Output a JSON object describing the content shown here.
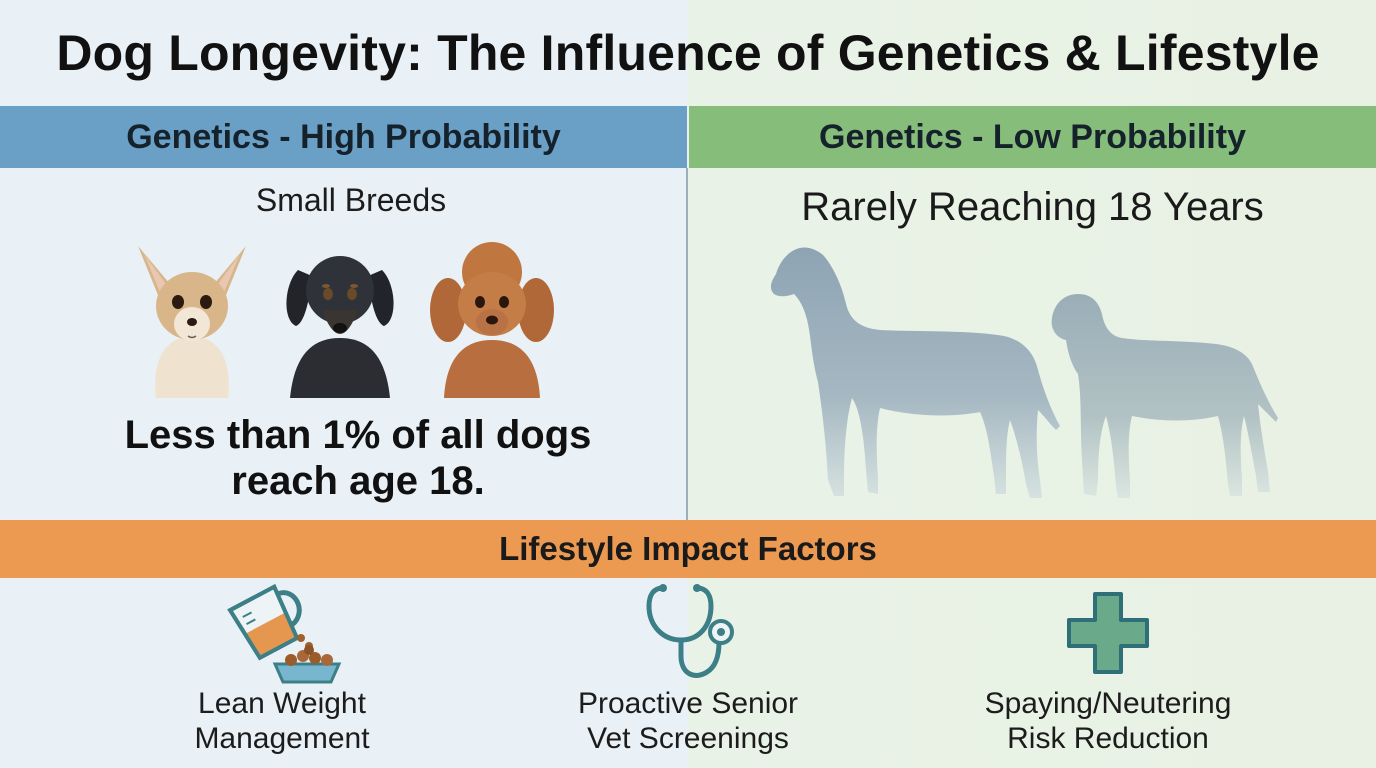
{
  "title": "Dog Longevity: The Influence of Genetics & Lifestyle",
  "left_panel": {
    "header": "Genetics - High Probability",
    "subtitle": "Small Breeds",
    "fact_line1": "Less than 1% of all dogs",
    "fact_line2": "reach age 18.",
    "dogs": [
      "chihuahua-photo",
      "dachshund-photo",
      "poodle-photo"
    ]
  },
  "right_panel": {
    "header": "Genetics - Low Probability",
    "subtitle": "Rarely Reaching 18 Years",
    "dogs": [
      "great-dane-silhouette",
      "mastiff-silhouette"
    ]
  },
  "lifestyle": {
    "header": "Lifestyle Impact Factors",
    "factors": [
      {
        "icon": "measuring-cup-food-bowl-icon",
        "line1": "Lean Weight",
        "line2": "Management"
      },
      {
        "icon": "stethoscope-icon",
        "line1": "Proactive Senior",
        "line2": "Vet Screenings"
      },
      {
        "icon": "medical-cross-icon",
        "line1": "Spaying/Neutering",
        "line2": "Risk Reduction"
      }
    ]
  },
  "colors": {
    "blue_band": "#6a9fc6",
    "green_band": "#86bd7a",
    "orange_band": "#ec9a52",
    "icon_teal": "#3d7f86",
    "cross_fill": "#6aaa8b"
  }
}
